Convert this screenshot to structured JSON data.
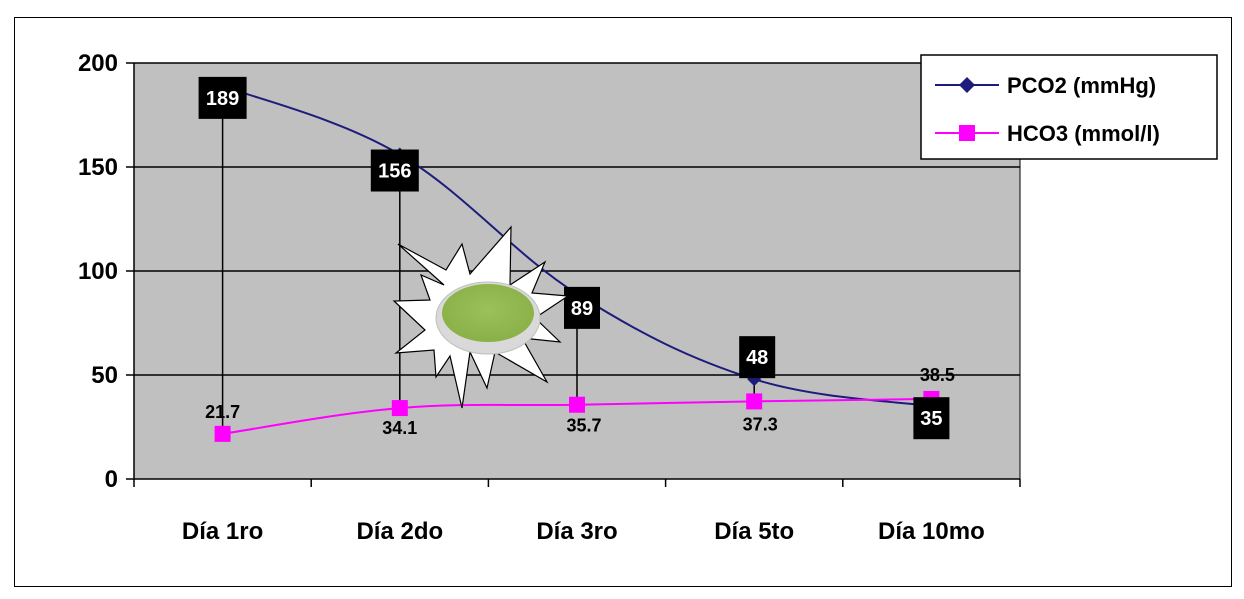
{
  "chart_data": {
    "type": "line",
    "categories": [
      "Día 1ro",
      "Día 2do",
      "Día 3ro",
      "Día 5to",
      "Día 10mo"
    ],
    "series": [
      {
        "name": "PCO2 (mmHg)",
        "values": [
          189,
          156,
          89,
          48,
          35
        ],
        "labels": [
          "189",
          "156",
          "89",
          "48",
          "35"
        ],
        "color": "#1c1c7c",
        "marker": "diamond"
      },
      {
        "name": "HCO3 (mmol/l)",
        "values": [
          21.7,
          34.1,
          35.7,
          37.3,
          38.5
        ],
        "labels": [
          "21.7",
          "34.1",
          "35.7",
          "37.3",
          "38.5"
        ],
        "color": "#ff00ff",
        "marker": "square"
      }
    ],
    "ylim": [
      0,
      200
    ],
    "yticks": [
      "0",
      "50",
      "100",
      "150",
      "200"
    ],
    "grid": true,
    "plot_background": "#c0c0c0",
    "legend": "top-right",
    "decoration": "starburst-icon"
  }
}
